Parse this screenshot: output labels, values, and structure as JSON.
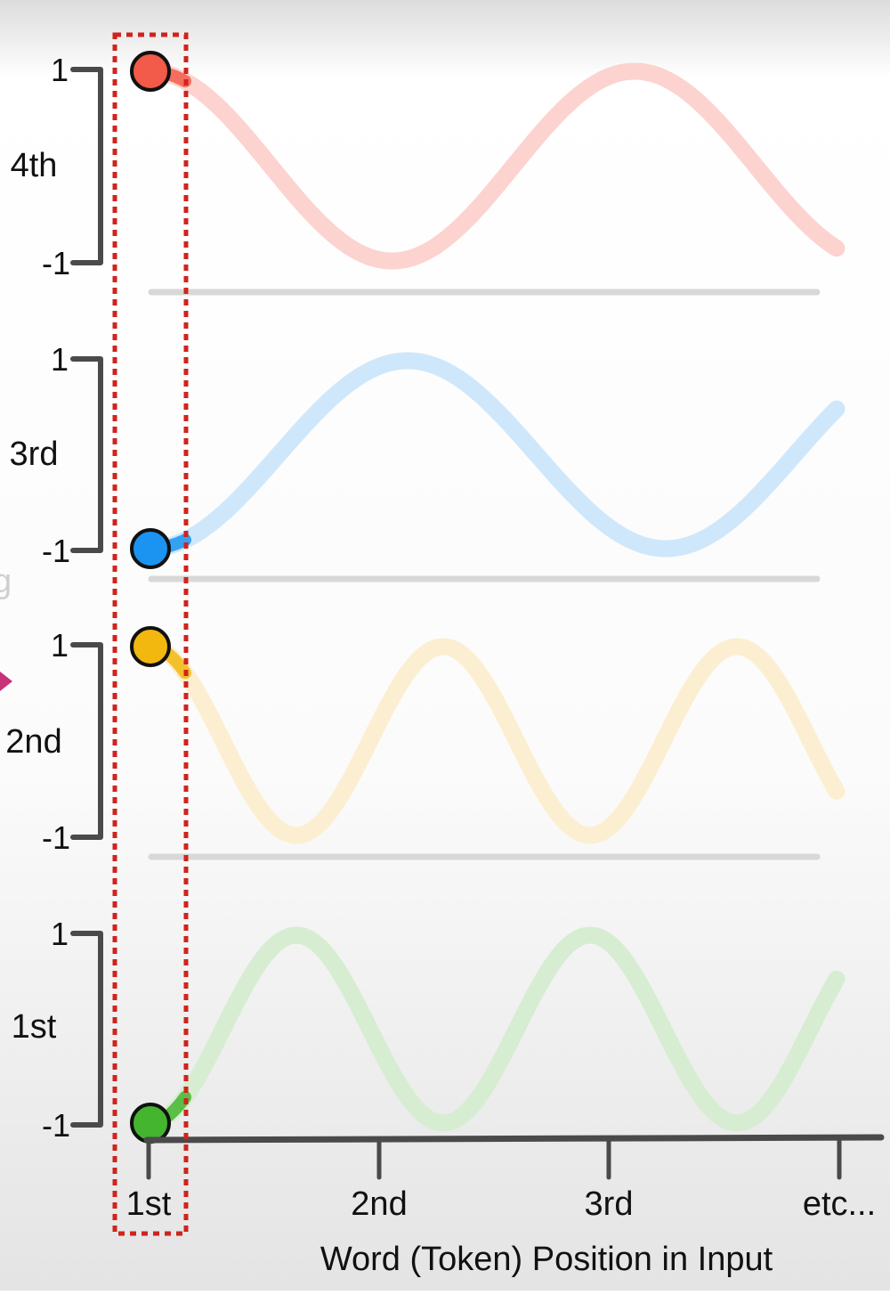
{
  "diagram": {
    "x_axis": {
      "title": "Word (Token) Position in Input",
      "tick_labels": [
        "1st",
        "2nd",
        "3rd",
        "etc..."
      ]
    },
    "y_axis_ticks": {
      "top": "1",
      "bottom": "-1"
    },
    "rows": [
      {
        "label": "4th",
        "color": "#f25a4a",
        "fade_color": "#fcd3cf",
        "first_position_value": 1
      },
      {
        "label": "3rd",
        "color": "#1a94f0",
        "fade_color": "#cfe7fb",
        "first_position_value": -1
      },
      {
        "label": "2nd",
        "color": "#f2b80f",
        "fade_color": "#fcefd1",
        "first_position_value": 1
      },
      {
        "label": "1st",
        "color": "#44b52f",
        "fade_color": "#d6edd1",
        "first_position_value": -1
      }
    ],
    "partial_left_glyph": "g",
    "highlight_color": "#d0231d",
    "pointer_color": "#c8327a"
  }
}
